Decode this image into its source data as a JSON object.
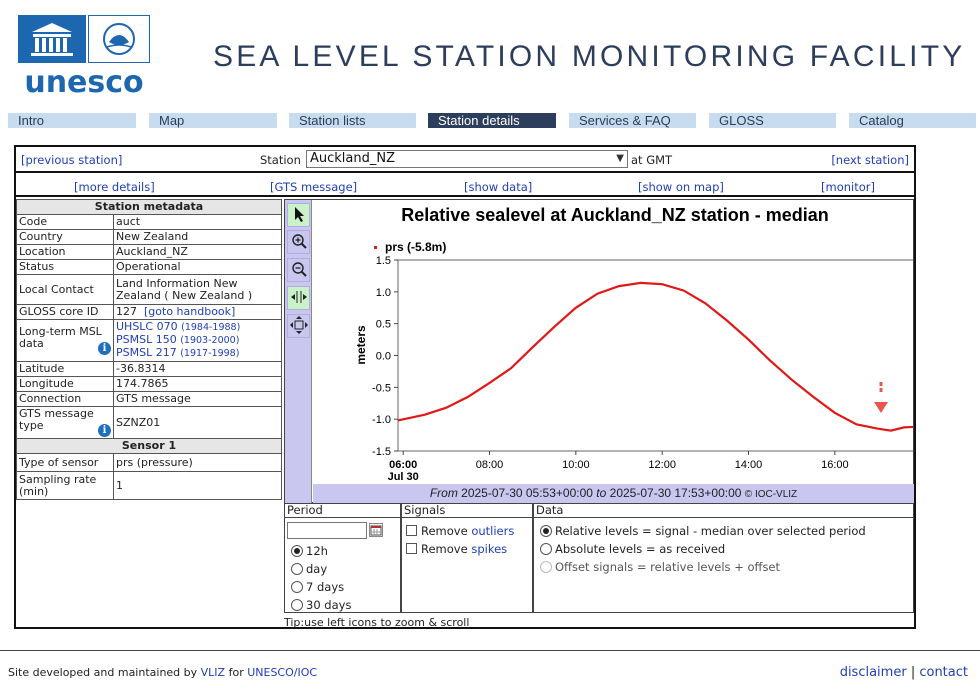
{
  "header": {
    "logo_text": "unesco",
    "site_title": "SEA LEVEL STATION MONITORING FACILITY"
  },
  "nav": {
    "tabs": [
      {
        "label": "Intro"
      },
      {
        "label": "Map"
      },
      {
        "label": "Station lists"
      },
      {
        "label": "Station details",
        "active": true
      },
      {
        "label": "Services & FAQ"
      },
      {
        "label": "GLOSS"
      },
      {
        "label": "Catalog"
      }
    ]
  },
  "station_bar": {
    "previous": "[previous station]",
    "station_label": "Station",
    "station_value": "Auckland_NZ",
    "at_gmt": "at GMT",
    "next": "[next station]"
  },
  "links": {
    "more_details": "[more details]",
    "gts_message": "[GTS message]",
    "show_data": "[show data]",
    "show_on_map": "[show on map]",
    "monitor": "[monitor]"
  },
  "metadata": {
    "header": "Station metadata",
    "code_k": "Code",
    "code_v": "auct",
    "country_k": "Country",
    "country_v": "New Zealand",
    "location_k": "Location",
    "location_v": "Auckland_NZ",
    "status_k": "Status",
    "status_v": "Operational",
    "contact_k": "Local Contact",
    "contact_v": "Land Information New Zealand ( New Zealand )",
    "gloss_k": "GLOSS core ID",
    "gloss_v": "127",
    "gloss_link": "[goto handbook]",
    "msl_k": "Long-term MSL data",
    "msl1": "UHSLC 070",
    "msl1_yr": "(1984-1988)",
    "msl2": "PSMSL 150",
    "msl2_yr": "(1903-2000)",
    "msl3": "PSMSL 217",
    "msl3_yr": "(1917-1998)",
    "lat_k": "Latitude",
    "lat_v": "-36.8314",
    "lon_k": "Longitude",
    "lon_v": "174.7865",
    "conn_k": "Connection",
    "conn_v": "GTS message",
    "gtstype_k": "GTS message type",
    "gtstype_v": "SZNZ01",
    "sensor_header": "Sensor 1",
    "sensor_type_k": "Type of sensor",
    "sensor_type_v": "prs (pressure)",
    "rate_k": "Sampling rate (min)",
    "rate_v": "1"
  },
  "chart_footer": {
    "from_label": "From",
    "from": "2025-07-30 05:53+00:00",
    "to_label": "to",
    "to": "2025-07-30 17:53+00:00",
    "credit": "© IOC-VLIZ"
  },
  "chart_data": {
    "type": "line",
    "title": "Relative sealevel at Auckland_NZ station - median",
    "ylabel": "meters",
    "xlabel": "",
    "ylim": [
      -1.5,
      1.5
    ],
    "yticks": [
      "1.5",
      "1.0",
      "0.5",
      "0.0",
      "-0.5",
      "-1.0",
      "-1.5"
    ],
    "xticks": [
      "06:00",
      "08:00",
      "10:00",
      "12:00",
      "14:00",
      "16:00"
    ],
    "x_sub": "Jul 30",
    "legend": "prs (-5.8m)",
    "line_color": "#e01818",
    "series": [
      {
        "name": "prs (-5.8m)",
        "x": [
          5.88,
          6.5,
          7.0,
          7.5,
          8.0,
          8.5,
          9.0,
          9.5,
          10.0,
          10.5,
          11.0,
          11.5,
          12.0,
          12.5,
          13.0,
          13.5,
          14.0,
          14.5,
          15.0,
          15.5,
          16.0,
          16.5,
          17.0,
          17.3,
          17.6,
          17.88
        ],
        "y": [
          -1.02,
          -0.93,
          -0.82,
          -0.65,
          -0.43,
          -0.2,
          0.13,
          0.45,
          0.75,
          0.97,
          1.09,
          1.14,
          1.12,
          1.02,
          0.82,
          0.55,
          0.25,
          -0.08,
          -0.38,
          -0.65,
          -0.9,
          -1.08,
          -1.15,
          -1.18,
          -1.13,
          -1.12
        ]
      }
    ]
  },
  "controls": {
    "period_title": "Period",
    "p12h": "12h",
    "pday": "day",
    "p7d": "7 days",
    "p30d": "30 days",
    "signals_title": "Signals",
    "remove_text": "Remove",
    "outliers": "outliers",
    "spikes": "spikes",
    "data_title": "Data",
    "d1": "Relative levels = signal - median over selected period",
    "d2": "Absolute levels = as received",
    "d3": "Offset signals = relative levels + offset"
  },
  "tip": {
    "label": "Tip:",
    "text": "use left icons to zoom & scroll"
  },
  "footer": {
    "left_text": "Site developed and maintained by",
    "vliz": "VLIZ",
    "for_text": "for",
    "unesco": "UNESCO/IOC",
    "disclaimer": "disclaimer",
    "sep": "|",
    "contact": "contact"
  }
}
